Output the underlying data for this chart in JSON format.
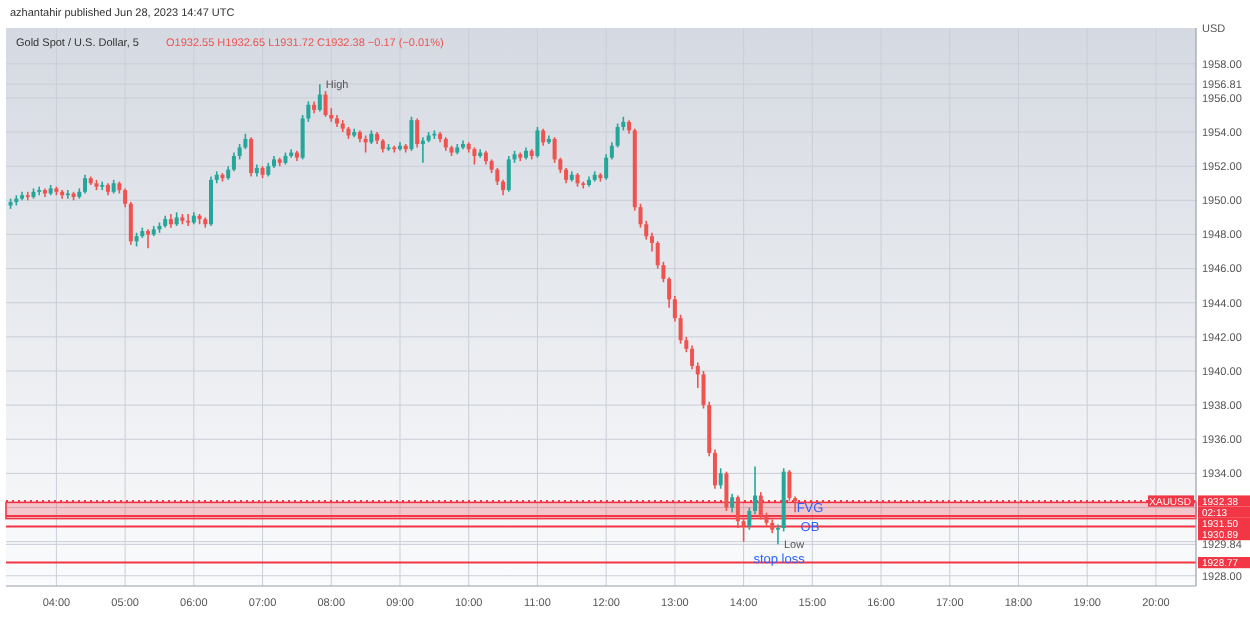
{
  "chart_data": {
    "type": "candlestick",
    "title": "Gold Spot / U.S. Dollar, 5",
    "subtitle": "O1932.55 H1932.65 L1931.72 C1932.38 −0.17 (−0.01%)",
    "ylabel": "USD",
    "annotations": [
      "azhantahir published Jun 28, 2023 14:47 UTC",
      {
        "text": "FVG",
        "x": "2023-06-28T14:58",
        "y": 1932.0
      },
      {
        "text": "OB",
        "x": "2023-06-28T14:58",
        "y": 1930.9
      },
      {
        "text": "stop loss",
        "x": "2023-06-28T14:31",
        "y": 1929.0
      },
      {
        "text": "High",
        "x": "2023-06-28T07:50",
        "y": 1956.81
      },
      {
        "text": "Low",
        "x": "2023-06-28T14:30",
        "y": 1929.84
      },
      {
        "text": "XAUUSD",
        "x": "2023-06-28T20:35",
        "y": 1932.38
      },
      "02:13"
    ],
    "colors": [
      "#26a69a",
      "#26a69a",
      "#26a69a",
      "#ef5350",
      "#26a69a",
      "#26a69a",
      "#ef5350",
      "#26a69a",
      "#ef5350",
      "#ef5350",
      "#26a69a",
      "#ef5350",
      "#26a69a",
      "#26a69a",
      "#ef5350",
      "#ef5350",
      "#26a69a",
      "#ef5350",
      "#26a69a",
      "#ef5350",
      "#ef5350",
      "#ef5350",
      "#26a69a",
      "#26a69a",
      "#ef5350",
      "#26a69a",
      "#26a69a",
      "#26a69a",
      "#ef5350",
      "#26a69a",
      "#ef5350",
      "#ef5350",
      "#26a69a",
      "#ef5350",
      "#ef5350",
      "#26a69a",
      "#26a69a",
      "#ef5350",
      "#26a69a",
      "#26a69a",
      "#26a69a",
      "#26a69a",
      "#ef5350",
      "#26a69a",
      "#ef5350",
      "#26a69a",
      "#26a69a",
      "#ef5350",
      "#26a69a",
      "#26a69a",
      "#ef5350",
      "#26a69a",
      "#26a69a",
      "#ef5350",
      "#26a69a",
      "#ef5350",
      "#ef5350",
      "#ef5350",
      "#ef5350",
      "#ef5350",
      "#26a69a",
      "#ef5350",
      "#ef5350",
      "#26a69a",
      "#ef5350",
      "#ef5350",
      "#26a69a",
      "#ef5350",
      "#26a69a",
      "#ef5350",
      "#26a69a",
      "#ef5350",
      "#26a69a",
      "#26a69a",
      "#26a69a",
      "#ef5350",
      "#ef5350",
      "#ef5350",
      "#26a69a",
      "#26a69a",
      "#ef5350",
      "#ef5350",
      "#26a69a",
      "#ef5350",
      "#ef5350",
      "#ef5350",
      "#ef5350",
      "#26a69a",
      "#26a69a",
      "#ef5350",
      "#26a69a",
      "#ef5350",
      "#26a69a",
      "#ef5350",
      "#26a69a",
      "#ef5350",
      "#ef5350",
      "#ef5350",
      "#26a69a",
      "#ef5350",
      "#ef5350",
      "#26a69a",
      "#26a69a",
      "#ef5350",
      "#26a69a",
      "#26a69a",
      "#26a69a",
      "#26a69a",
      "#ef5350",
      "#ef5350",
      "#ef5350",
      "#ef5350",
      "#ef5350",
      "#ef5350",
      "#ef5350",
      "#ef5350",
      "#ef5350",
      "#ef5350",
      "#ef5350",
      "#ef5350",
      "#ef5350",
      "#ef5350",
      "#ef5350",
      "#ef5350",
      "#26a69a",
      "#ef5350",
      "#26a69a",
      "#ef5350",
      "#ef5350",
      "#26a69a",
      "#26a69a",
      "#ef5350",
      "#ef5350",
      "#ef5350",
      "#26a69a",
      "#26a69a",
      "#ef5350",
      "#ef5350"
    ],
    "x": [
      "2023-06-28T03:20",
      "2023-06-28T03:25",
      "2023-06-28T03:30",
      "2023-06-28T03:35",
      "2023-06-28T03:40",
      "2023-06-28T03:45",
      "2023-06-28T03:50",
      "2023-06-28T03:55",
      "2023-06-28T04:00",
      "2023-06-28T04:05",
      "2023-06-28T04:10",
      "2023-06-28T04:15",
      "2023-06-28T04:20",
      "2023-06-28T04:25",
      "2023-06-28T04:30",
      "2023-06-28T04:35",
      "2023-06-28T04:40",
      "2023-06-28T04:45",
      "2023-06-28T04:50",
      "2023-06-28T04:55",
      "2023-06-28T05:00",
      "2023-06-28T05:05",
      "2023-06-28T05:10",
      "2023-06-28T05:15",
      "2023-06-28T05:20",
      "2023-06-28T05:25",
      "2023-06-28T05:30",
      "2023-06-28T05:35",
      "2023-06-28T05:40",
      "2023-06-28T05:45",
      "2023-06-28T05:50",
      "2023-06-28T05:55",
      "2023-06-28T06:00",
      "2023-06-28T06:05",
      "2023-06-28T06:10",
      "2023-06-28T06:15",
      "2023-06-28T06:20",
      "2023-06-28T06:25",
      "2023-06-28T06:30",
      "2023-06-28T06:35",
      "2023-06-28T06:40",
      "2023-06-28T06:45",
      "2023-06-28T06:50",
      "2023-06-28T06:55",
      "2023-06-28T07:00",
      "2023-06-28T07:05",
      "2023-06-28T07:10",
      "2023-06-28T07:15",
      "2023-06-28T07:20",
      "2023-06-28T07:25",
      "2023-06-28T07:30",
      "2023-06-28T07:35",
      "2023-06-28T07:40",
      "2023-06-28T07:45",
      "2023-06-28T07:50",
      "2023-06-28T07:55",
      "2023-06-28T08:00",
      "2023-06-28T08:05",
      "2023-06-28T08:10",
      "2023-06-28T08:15",
      "2023-06-28T08:20",
      "2023-06-28T08:25",
      "2023-06-28T08:30",
      "2023-06-28T08:35",
      "2023-06-28T08:40",
      "2023-06-28T08:45",
      "2023-06-28T08:50",
      "2023-06-28T08:55",
      "2023-06-28T09:00",
      "2023-06-28T09:05",
      "2023-06-28T09:10",
      "2023-06-28T09:15",
      "2023-06-28T09:20",
      "2023-06-28T09:25",
      "2023-06-28T09:30",
      "2023-06-28T09:35",
      "2023-06-28T09:40",
      "2023-06-28T09:45",
      "2023-06-28T09:50",
      "2023-06-28T09:55",
      "2023-06-28T10:00",
      "2023-06-28T10:05",
      "2023-06-28T10:10",
      "2023-06-28T10:15",
      "2023-06-28T10:20",
      "2023-06-28T10:25",
      "2023-06-28T10:30",
      "2023-06-28T10:35",
      "2023-06-28T10:40",
      "2023-06-28T10:45",
      "2023-06-28T10:50",
      "2023-06-28T10:55",
      "2023-06-28T11:00",
      "2023-06-28T11:05",
      "2023-06-28T11:10",
      "2023-06-28T11:15",
      "2023-06-28T11:20",
      "2023-06-28T11:25",
      "2023-06-28T11:30",
      "2023-06-28T11:35",
      "2023-06-28T11:40",
      "2023-06-28T11:45",
      "2023-06-28T11:50",
      "2023-06-28T11:55",
      "2023-06-28T12:00",
      "2023-06-28T12:05",
      "2023-06-28T12:10",
      "2023-06-28T12:15",
      "2023-06-28T12:20",
      "2023-06-28T12:25",
      "2023-06-28T12:30",
      "2023-06-28T12:35",
      "2023-06-28T12:40",
      "2023-06-28T12:45",
      "2023-06-28T12:50",
      "2023-06-28T12:55",
      "2023-06-28T13:00",
      "2023-06-28T13:05",
      "2023-06-28T13:10",
      "2023-06-28T13:15",
      "2023-06-28T13:20",
      "2023-06-28T13:25",
      "2023-06-28T13:30",
      "2023-06-28T13:35",
      "2023-06-28T13:40",
      "2023-06-28T13:45",
      "2023-06-28T13:50",
      "2023-06-28T13:55",
      "2023-06-28T14:00",
      "2023-06-28T14:05",
      "2023-06-28T14:10",
      "2023-06-28T14:15",
      "2023-06-28T14:20",
      "2023-06-28T14:25",
      "2023-06-28T14:30",
      "2023-06-28T14:35",
      "2023-06-28T14:40",
      "2023-06-28T14:45"
    ],
    "ohlc": [
      [
        1949.7,
        1950.1,
        1949.5,
        1949.9
      ],
      [
        1949.9,
        1950.3,
        1949.7,
        1950.1
      ],
      [
        1950.1,
        1950.5,
        1950.0,
        1950.3
      ],
      [
        1950.3,
        1950.5,
        1950.0,
        1950.2
      ],
      [
        1950.2,
        1950.7,
        1950.1,
        1950.5
      ],
      [
        1950.5,
        1950.8,
        1950.3,
        1950.6
      ],
      [
        1950.6,
        1950.7,
        1950.2,
        1950.4
      ],
      [
        1950.4,
        1950.9,
        1950.3,
        1950.7
      ],
      [
        1950.7,
        1950.8,
        1950.3,
        1950.5
      ],
      [
        1950.5,
        1950.6,
        1950.1,
        1950.3
      ],
      [
        1950.3,
        1950.6,
        1950.1,
        1950.4
      ],
      [
        1950.4,
        1950.5,
        1950.0,
        1950.2
      ],
      [
        1950.2,
        1950.7,
        1950.1,
        1950.5
      ],
      [
        1950.5,
        1951.5,
        1950.4,
        1951.3
      ],
      [
        1951.3,
        1951.4,
        1950.9,
        1951.0
      ],
      [
        1951.0,
        1951.2,
        1950.6,
        1950.8
      ],
      [
        1950.8,
        1951.1,
        1950.6,
        1950.9
      ],
      [
        1950.9,
        1951.0,
        1950.3,
        1950.5
      ],
      [
        1950.5,
        1951.2,
        1950.4,
        1951.0
      ],
      [
        1951.0,
        1951.1,
        1950.4,
        1950.6
      ],
      [
        1950.6,
        1950.7,
        1949.6,
        1949.8
      ],
      [
        1949.8,
        1949.9,
        1947.4,
        1947.6
      ],
      [
        1947.6,
        1948.1,
        1947.3,
        1947.9
      ],
      [
        1947.9,
        1948.4,
        1947.8,
        1948.2
      ],
      [
        1948.2,
        1948.3,
        1947.2,
        1948.0
      ],
      [
        1948.0,
        1948.5,
        1947.9,
        1948.3
      ],
      [
        1948.3,
        1948.7,
        1948.1,
        1948.5
      ],
      [
        1948.5,
        1949.1,
        1948.4,
        1948.9
      ],
      [
        1948.9,
        1949.2,
        1948.4,
        1948.6
      ],
      [
        1948.6,
        1949.3,
        1948.5,
        1949.0
      ],
      [
        1949.0,
        1949.2,
        1948.6,
        1948.8
      ],
      [
        1948.8,
        1949.2,
        1948.5,
        1948.7
      ],
      [
        1948.7,
        1949.3,
        1948.6,
        1949.1
      ],
      [
        1949.1,
        1949.2,
        1948.6,
        1948.9
      ],
      [
        1948.9,
        1949.0,
        1948.4,
        1948.6
      ],
      [
        1948.6,
        1951.4,
        1948.5,
        1951.2
      ],
      [
        1951.2,
        1951.7,
        1951.0,
        1951.5
      ],
      [
        1951.5,
        1951.6,
        1951.1,
        1951.3
      ],
      [
        1951.3,
        1952.0,
        1951.2,
        1951.8
      ],
      [
        1951.8,
        1952.8,
        1951.7,
        1952.6
      ],
      [
        1952.6,
        1953.3,
        1952.4,
        1953.1
      ],
      [
        1953.1,
        1953.9,
        1953.0,
        1953.6
      ],
      [
        1953.6,
        1953.7,
        1951.4,
        1951.6
      ],
      [
        1951.6,
        1952.1,
        1951.4,
        1951.9
      ],
      [
        1951.9,
        1952.0,
        1951.3,
        1951.5
      ],
      [
        1951.5,
        1952.2,
        1951.4,
        1952.0
      ],
      [
        1952.0,
        1952.6,
        1951.9,
        1952.4
      ],
      [
        1952.4,
        1952.5,
        1952.0,
        1952.2
      ],
      [
        1952.2,
        1952.8,
        1952.1,
        1952.6
      ],
      [
        1952.6,
        1953.0,
        1952.5,
        1952.8
      ],
      [
        1952.8,
        1952.9,
        1952.3,
        1952.5
      ],
      [
        1952.5,
        1955.0,
        1952.4,
        1954.8
      ],
      [
        1954.8,
        1955.8,
        1954.6,
        1955.6
      ],
      [
        1955.6,
        1955.8,
        1955.1,
        1955.3
      ],
      [
        1955.3,
        1956.81,
        1955.2,
        1956.2
      ],
      [
        1956.2,
        1956.4,
        1954.9,
        1955.0
      ],
      [
        1955.0,
        1955.4,
        1954.6,
        1954.8
      ],
      [
        1954.8,
        1955.0,
        1954.3,
        1954.5
      ],
      [
        1954.5,
        1954.7,
        1954.0,
        1954.2
      ],
      [
        1954.2,
        1954.3,
        1953.6,
        1953.8
      ],
      [
        1953.8,
        1954.2,
        1953.7,
        1954.0
      ],
      [
        1954.0,
        1954.1,
        1953.4,
        1953.6
      ],
      [
        1953.6,
        1953.8,
        1952.8,
        1953.4
      ],
      [
        1953.4,
        1954.1,
        1953.3,
        1953.9
      ],
      [
        1953.9,
        1954.0,
        1953.3,
        1953.5
      ],
      [
        1953.5,
        1953.6,
        1952.8,
        1953.0
      ],
      [
        1953.0,
        1953.3,
        1952.9,
        1953.1
      ],
      [
        1953.1,
        1953.2,
        1952.8,
        1953.0
      ],
      [
        1953.0,
        1953.4,
        1952.9,
        1953.2
      ],
      [
        1953.2,
        1953.3,
        1952.8,
        1953.0
      ],
      [
        1953.0,
        1954.9,
        1952.9,
        1954.7
      ],
      [
        1954.7,
        1954.8,
        1953.1,
        1953.3
      ],
      [
        1953.3,
        1953.7,
        1952.2,
        1953.5
      ],
      [
        1953.5,
        1954.0,
        1953.4,
        1953.8
      ],
      [
        1953.8,
        1954.1,
        1953.6,
        1953.9
      ],
      [
        1953.9,
        1954.0,
        1953.4,
        1953.6
      ],
      [
        1953.6,
        1953.7,
        1952.9,
        1953.1
      ],
      [
        1953.1,
        1953.2,
        1952.6,
        1952.8
      ],
      [
        1952.8,
        1953.3,
        1952.7,
        1953.1
      ],
      [
        1953.1,
        1953.5,
        1953.0,
        1953.3
      ],
      [
        1953.3,
        1953.4,
        1952.8,
        1953.0
      ],
      [
        1953.0,
        1953.1,
        1952.1,
        1952.6
      ],
      [
        1952.6,
        1953.0,
        1952.5,
        1952.8
      ],
      [
        1952.8,
        1952.9,
        1952.1,
        1952.3
      ],
      [
        1952.3,
        1952.4,
        1951.6,
        1951.8
      ],
      [
        1951.8,
        1951.9,
        1950.9,
        1951.1
      ],
      [
        1951.1,
        1951.2,
        1950.3,
        1950.6
      ],
      [
        1950.6,
        1952.6,
        1950.5,
        1952.4
      ],
      [
        1952.4,
        1952.9,
        1952.2,
        1952.7
      ],
      [
        1952.7,
        1952.8,
        1952.3,
        1952.5
      ],
      [
        1952.5,
        1953.1,
        1952.4,
        1952.9
      ],
      [
        1952.9,
        1953.0,
        1952.4,
        1952.6
      ],
      [
        1952.6,
        1954.3,
        1952.5,
        1954.1
      ],
      [
        1954.1,
        1954.2,
        1953.2,
        1953.4
      ],
      [
        1953.4,
        1953.8,
        1953.3,
        1953.6
      ],
      [
        1953.6,
        1953.7,
        1952.2,
        1952.4
      ],
      [
        1952.4,
        1952.5,
        1951.6,
        1951.8
      ],
      [
        1951.8,
        1951.9,
        1951.0,
        1951.2
      ],
      [
        1951.2,
        1951.7,
        1951.1,
        1951.5
      ],
      [
        1951.5,
        1951.6,
        1950.8,
        1951.0
      ],
      [
        1951.0,
        1951.1,
        1950.7,
        1950.9
      ],
      [
        1950.9,
        1951.4,
        1950.8,
        1951.2
      ],
      [
        1951.2,
        1951.7,
        1951.1,
        1951.5
      ],
      [
        1951.5,
        1951.6,
        1951.1,
        1951.3
      ],
      [
        1951.3,
        1952.7,
        1951.2,
        1952.5
      ],
      [
        1952.5,
        1953.4,
        1952.4,
        1953.2
      ],
      [
        1953.2,
        1954.5,
        1953.1,
        1954.3
      ],
      [
        1954.3,
        1954.9,
        1954.1,
        1954.6
      ],
      [
        1954.6,
        1954.7,
        1953.9,
        1954.1
      ],
      [
        1954.1,
        1954.2,
        1949.4,
        1949.6
      ],
      [
        1949.6,
        1949.8,
        1948.4,
        1948.6
      ],
      [
        1948.6,
        1948.8,
        1947.7,
        1947.9
      ],
      [
        1947.9,
        1948.1,
        1947.0,
        1947.5
      ],
      [
        1947.5,
        1947.6,
        1946.0,
        1946.2
      ],
      [
        1946.2,
        1946.4,
        1945.2,
        1945.4
      ],
      [
        1945.4,
        1945.5,
        1943.7,
        1944.2
      ],
      [
        1944.2,
        1944.4,
        1942.9,
        1943.1
      ],
      [
        1943.1,
        1943.3,
        1941.6,
        1941.8
      ],
      [
        1941.8,
        1942.0,
        1941.1,
        1941.3
      ],
      [
        1941.3,
        1941.5,
        1940.1,
        1940.3
      ],
      [
        1940.3,
        1940.5,
        1939.0,
        1939.8
      ],
      [
        1939.8,
        1940.0,
        1937.8,
        1938.0
      ],
      [
        1938.0,
        1938.2,
        1935.0,
        1935.2
      ],
      [
        1935.2,
        1935.4,
        1933.1,
        1933.3
      ],
      [
        1933.3,
        1934.3,
        1933.1,
        1934.0
      ],
      [
        1934.0,
        1934.1,
        1931.8,
        1932.0
      ],
      [
        1932.0,
        1932.8,
        1931.7,
        1932.6
      ],
      [
        1932.6,
        1932.7,
        1930.8,
        1931.2
      ],
      [
        1931.2,
        1931.4,
        1930.0,
        1930.9
      ],
      [
        1930.9,
        1932.0,
        1930.7,
        1931.8
      ],
      [
        1931.8,
        1934.4,
        1931.6,
        1932.7
      ],
      [
        1932.7,
        1932.9,
        1931.3,
        1931.5
      ],
      [
        1931.5,
        1931.7,
        1930.9,
        1931.1
      ],
      [
        1931.1,
        1931.3,
        1930.5,
        1930.7
      ],
      [
        1930.7,
        1931.0,
        1929.84,
        1930.8
      ],
      [
        1930.8,
        1934.3,
        1930.6,
        1934.1
      ],
      [
        1934.1,
        1934.2,
        1932.4,
        1932.55
      ],
      [
        1932.55,
        1932.65,
        1931.72,
        1932.38
      ]
    ],
    "xlim": [
      "2023-06-28T03:16",
      "2023-06-28T20:35"
    ],
    "xticks": [
      {
        "value": "2023-06-28T04:00",
        "label": "04:00"
      },
      {
        "value": "2023-06-28T05:00",
        "label": "05:00"
      },
      {
        "value": "2023-06-28T06:00",
        "label": "06:00"
      },
      {
        "value": "2023-06-28T07:00",
        "label": "07:00"
      },
      {
        "value": "2023-06-28T08:00",
        "label": "08:00"
      },
      {
        "value": "2023-06-28T09:00",
        "label": "09:00"
      },
      {
        "value": "2023-06-28T10:00",
        "label": "10:00"
      },
      {
        "value": "2023-06-28T11:00",
        "label": "11:00"
      },
      {
        "value": "2023-06-28T12:00",
        "label": "12:00"
      },
      {
        "value": "2023-06-28T13:00",
        "label": "13:00"
      },
      {
        "value": "2023-06-28T14:00",
        "label": "14:00"
      },
      {
        "value": "2023-06-28T15:00",
        "label": "15:00"
      },
      {
        "value": "2023-06-28T16:00",
        "label": "16:00"
      },
      {
        "value": "2023-06-28T17:00",
        "label": "17:00"
      },
      {
        "value": "2023-06-28T18:00",
        "label": "18:00"
      },
      {
        "value": "2023-06-28T19:00",
        "label": "19:00"
      },
      {
        "value": "2023-06-28T20:00",
        "label": "20:00"
      }
    ],
    "ylim": [
      1927.4,
      1960.1
    ],
    "yticks": [
      {
        "value": 1928,
        "label": "1928.00"
      },
      {
        "value": 1929.84,
        "label": "1929.84"
      },
      {
        "value": 1930,
        "label": null
      },
      {
        "value": 1932,
        "label": null
      },
      {
        "value": 1934,
        "label": "1934.00"
      },
      {
        "value": 1936,
        "label": "1936.00"
      },
      {
        "value": 1938,
        "label": "1938.00"
      },
      {
        "value": 1940,
        "label": "1940.00"
      },
      {
        "value": 1942,
        "label": "1942.00"
      },
      {
        "value": 1944,
        "label": "1944.00"
      },
      {
        "value": 1946,
        "label": "1946.00"
      },
      {
        "value": 1948,
        "label": "1948.00"
      },
      {
        "value": 1950,
        "label": "1950.00"
      },
      {
        "value": 1952,
        "label": "1952.00"
      },
      {
        "value": 1954,
        "label": "1954.00"
      },
      {
        "value": 1956,
        "label": "1956.00"
      },
      {
        "value": 1956.81,
        "label": "1956.81"
      },
      {
        "value": 1958,
        "label": "1958.00"
      }
    ],
    "ref_lines": [
      {
        "axis": "y",
        "value": 1932.38,
        "label": "1932.38",
        "color": "#f23645",
        "line_style": "dotted"
      },
      {
        "axis": "y",
        "value": 1931.5,
        "label": "1931.50",
        "color": "#f23645",
        "line_style": "solid"
      },
      {
        "axis": "y",
        "value": 1930.89,
        "label": "1930.89",
        "color": "#f23645",
        "line_style": "solid"
      },
      {
        "axis": "y",
        "value": 1928.77,
        "label": "1928.77",
        "color": "#f23645",
        "line_style": "solid"
      }
    ],
    "bands": [
      {
        "axis": "y",
        "from": 1931.35,
        "to": 1932.3,
        "color": "#f23645"
      }
    ],
    "grid": true
  }
}
